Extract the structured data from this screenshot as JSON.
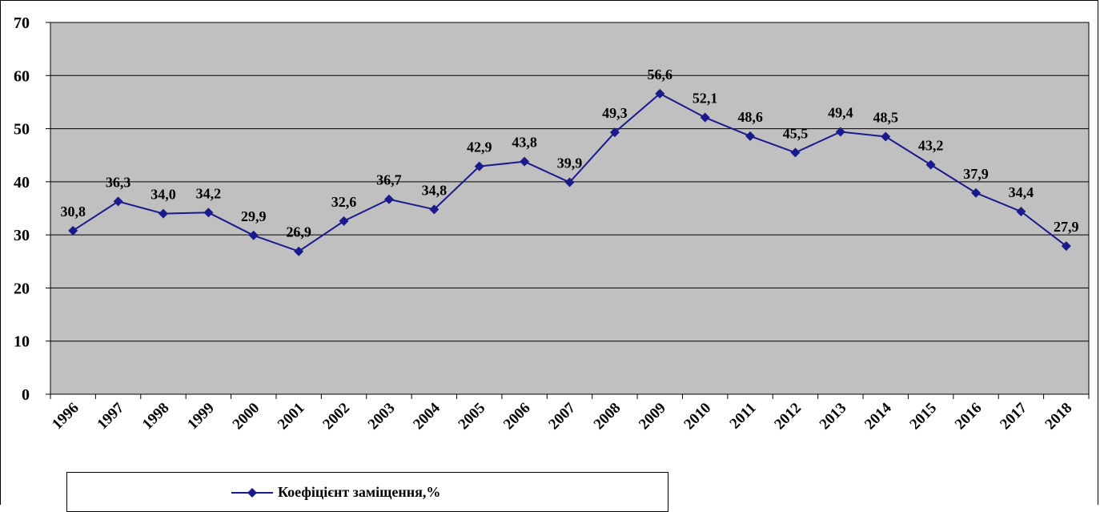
{
  "chart_data": {
    "type": "line",
    "title": "",
    "xlabel": "",
    "ylabel": "",
    "categories": [
      "1996",
      "1997",
      "1998",
      "1999",
      "2000",
      "2001",
      "2002",
      "2003",
      "2004",
      "2005",
      "2006",
      "2007",
      "2008",
      "2009",
      "2010",
      "2011",
      "2012",
      "2013",
      "2014",
      "2015",
      "2016",
      "2017",
      "2018"
    ],
    "series": [
      {
        "name": "Коефіцієнт заміщення,%",
        "values": [
          30.8,
          36.3,
          34.0,
          34.2,
          29.9,
          26.9,
          32.6,
          36.7,
          34.8,
          42.9,
          43.8,
          39.9,
          49.3,
          56.6,
          52.1,
          48.6,
          45.5,
          49.4,
          48.5,
          43.2,
          37.9,
          34.4,
          27.9
        ],
        "labels": [
          "30,8",
          "36,3",
          "34,0",
          "34,2",
          "29,9",
          "26,9",
          "32,6",
          "36,7",
          "34,8",
          "42,9",
          "43,8",
          "39,9",
          "49,3",
          "56,6",
          "52,1",
          "48,6",
          "45,5",
          "49,4",
          "48,5",
          "43,2",
          "37,9",
          "34,4",
          "27,9"
        ],
        "color": "#1a1a8c",
        "marker": "diamond"
      }
    ],
    "ylim": [
      0,
      70
    ],
    "yticks": [
      0,
      10,
      20,
      30,
      40,
      50,
      60,
      70
    ],
    "grid": true,
    "plot_background": "#c0c0c0",
    "legend": "bottom"
  }
}
